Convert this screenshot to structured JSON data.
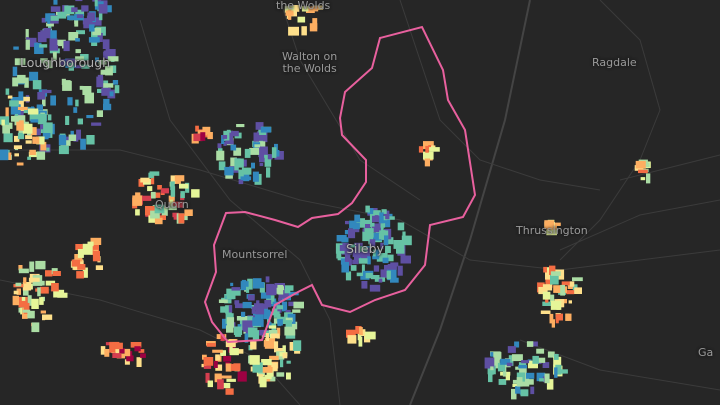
{
  "map": {
    "labels": {
      "loughborough": "Loughborough",
      "the_wolds_top": "the Wolds",
      "walton": "Walton on\nthe Wolds",
      "ragdale": "Ragdale",
      "quorn": "Quorn",
      "mountsorrel": "Mountsorrel",
      "sileby": "Sileby",
      "thrussington": "Thrussington",
      "gaddesby_partial": "Ga"
    },
    "colors": {
      "background": "#262626",
      "boundary": "#e8609e",
      "roads": "#3a3a3a",
      "palette": [
        "#9e0142",
        "#d53e4f",
        "#f46d43",
        "#fdae61",
        "#fee08b",
        "#e6f598",
        "#abdda4",
        "#66c2a5",
        "#3288bd",
        "#5e4fa2"
      ]
    }
  }
}
